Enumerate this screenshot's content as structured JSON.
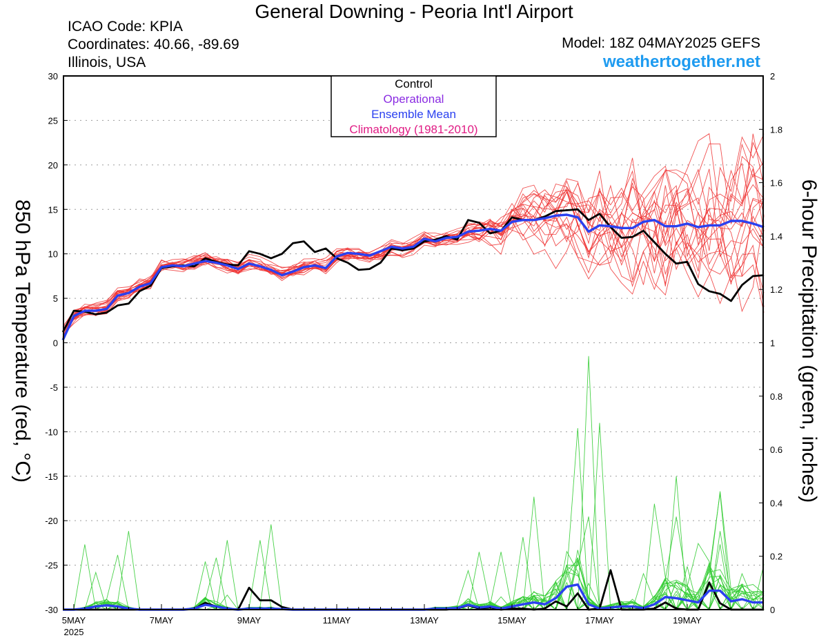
{
  "header": {
    "title": "General Downing - Peoria Int'l Airport",
    "icao": "ICAO Code: KPIA",
    "coords": "Coordinates: 40.66, -89.69",
    "region": "Illinois, USA",
    "model": "Model: 18Z 04MAY2025 GEFS",
    "site": "weathertogether.net"
  },
  "axes": {
    "left_label": "850 hPa Temperature (red, °C)",
    "right_label": "6-hour Precipitation (green, inches)"
  },
  "legend": {
    "items": [
      {
        "label": "Control",
        "color": "#000000"
      },
      {
        "label": "Operational",
        "color": "#8a2be2"
      },
      {
        "label": "Ensemble Mean",
        "color": "#2a40f0"
      },
      {
        "label": "Climatology (1981-2010)",
        "color": "#e01b84"
      }
    ]
  },
  "colors": {
    "members_temp": "#ee3030",
    "members_precip": "#33cc33",
    "control": "#000000",
    "mean": "#2a40f0",
    "grid": "#9a9a9a"
  },
  "chart_data": {
    "type": "line",
    "x_unit": "days since 00Z 5 May 2025 (6-hourly steps)",
    "x_ticks": [
      {
        "label": "5MAY",
        "day": 0
      },
      {
        "label": "7MAY",
        "day": 2
      },
      {
        "label": "9MAY",
        "day": 4
      },
      {
        "label": "11MAY",
        "day": 6
      },
      {
        "label": "13MAY",
        "day": 8
      },
      {
        "label": "15MAY",
        "day": 10
      },
      {
        "label": "17MAY",
        "day": 12
      },
      {
        "label": "19MAY",
        "day": 14
      }
    ],
    "x_year_label": "2025",
    "x_range": [
      0,
      16.0
    ],
    "grid": true,
    "left_axis": {
      "title": "850 hPa Temperature (red, °C)",
      "range": [
        -30,
        30
      ],
      "ticks": [
        30,
        25,
        20,
        15,
        10,
        5,
        0,
        -5,
        -10,
        -15,
        -20,
        -25,
        -30
      ]
    },
    "right_axis": {
      "title": "6-hour Precipitation (green, inches)",
      "range": [
        0,
        2
      ],
      "ticks": [
        "2",
        "1.8",
        "1.6",
        "1.4",
        "1.2",
        "1",
        "0.8",
        "0.6",
        "0.4",
        "0.2",
        "0"
      ]
    },
    "legend_position": "top-center",
    "series": [
      {
        "name": "Control",
        "axis": "left",
        "color": "#000000",
        "x0": -0.25,
        "dx": 0.25,
        "values": [
          1.2,
          3.6,
          3.5,
          3.2,
          3.4,
          4.2,
          4.4,
          5.8,
          6.4,
          8.4,
          8.6,
          8.7,
          8.6,
          9.5,
          9.1,
          8.8,
          8.7,
          10.3,
          10.0,
          9.5,
          10.0,
          11.2,
          11.4,
          10.2,
          10.6,
          9.5,
          9.0,
          8.2,
          8.3,
          9.0,
          10.6,
          10.4,
          10.6,
          11.4,
          11.6,
          12.0,
          11.6,
          13.8,
          13.5,
          12.3,
          12.6,
          14.1,
          13.8,
          13.8,
          14.2,
          14.8,
          14.9,
          15.0,
          13.8,
          14.5,
          13.0,
          11.8,
          11.9,
          12.6,
          11.3,
          10.0,
          8.9,
          9.1,
          6.6,
          5.8,
          5.5,
          4.7,
          6.5,
          7.5,
          7.6
        ]
      },
      {
        "name": "Ensemble Mean",
        "axis": "left",
        "color": "#2a40f0",
        "x0": -0.25,
        "dx": 0.25,
        "values": [
          0.3,
          3.0,
          3.6,
          3.6,
          3.8,
          5.3,
          5.6,
          6.3,
          6.7,
          8.5,
          8.7,
          8.6,
          8.9,
          9.2,
          9.0,
          8.7,
          8.3,
          8.9,
          8.6,
          8.2,
          7.6,
          8.0,
          8.5,
          8.7,
          8.4,
          9.7,
          10.1,
          10.0,
          9.8,
          10.3,
          10.8,
          10.6,
          10.8,
          11.7,
          11.4,
          11.8,
          11.9,
          12.5,
          12.6,
          12.8,
          12.6,
          13.6,
          13.8,
          13.8,
          14.0,
          14.3,
          14.4,
          14.1,
          12.5,
          13.2,
          13.1,
          12.9,
          12.9,
          13.6,
          13.8,
          13.1,
          13.1,
          13.4,
          13.0,
          13.2,
          13.2,
          13.7,
          13.7,
          13.4,
          13.0
        ]
      },
      {
        "name": "Control",
        "axis": "right",
        "color": "#000000",
        "x0": -0.25,
        "dx": 0.25,
        "values": [
          0,
          0,
          0,
          0,
          0,
          0,
          0,
          0,
          0,
          0,
          0,
          0,
          0.004,
          0.025,
          0.012,
          0.004,
          0,
          0.082,
          0.035,
          0.035,
          0.01,
          0,
          0,
          0,
          0,
          0,
          0,
          0,
          0,
          0,
          0,
          0,
          0,
          0,
          0,
          0,
          0.004,
          0.016,
          0.004,
          0.008,
          0,
          0.004,
          0.004,
          0,
          0.004,
          0.031,
          0.012,
          0.061,
          0,
          0.004,
          0.148,
          0,
          0,
          0,
          0.004,
          0.027,
          0.004,
          0,
          0,
          0.102,
          0.024,
          0,
          0,
          0,
          0
        ]
      },
      {
        "name": "Ensemble Mean",
        "axis": "right",
        "color": "#2a40f0",
        "x0": -0.25,
        "dx": 0.25,
        "values": [
          0,
          0,
          0.004,
          0.012,
          0.016,
          0.012,
          0.004,
          0,
          0,
          0,
          0,
          0,
          0.004,
          0.018,
          0.012,
          0.004,
          0,
          0.004,
          0.004,
          0.004,
          0.002,
          0,
          0,
          0,
          0,
          0,
          0,
          0,
          0,
          0,
          0,
          0,
          0,
          0,
          0.004,
          0.004,
          0.006,
          0.018,
          0.008,
          0.012,
          0.004,
          0.012,
          0.02,
          0.027,
          0.02,
          0.043,
          0.086,
          0.094,
          0.02,
          0.004,
          0.008,
          0.012,
          0.012,
          0.006,
          0.02,
          0.047,
          0.043,
          0.035,
          0.027,
          0.071,
          0.071,
          0.031,
          0.039,
          0.027,
          0.027
        ]
      }
    ]
  }
}
